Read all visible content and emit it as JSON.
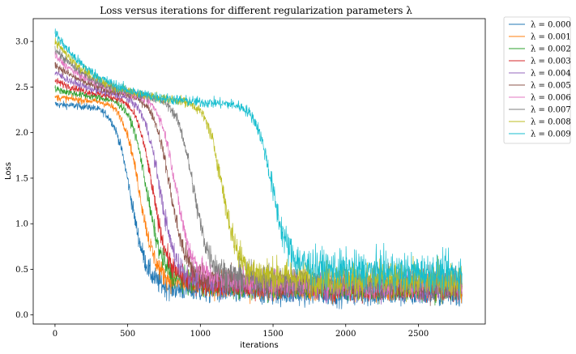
{
  "chart_data": {
    "type": "line",
    "title": "Loss versus iterations for different regularization parameters λ",
    "xlabel": "iterations",
    "ylabel": "Loss",
    "xlim": [
      -150,
      2960
    ],
    "ylim": [
      -0.1,
      3.25
    ],
    "xticks": [
      0,
      500,
      1000,
      1500,
      2000,
      2500
    ],
    "yticks": [
      0.0,
      0.5,
      1.0,
      1.5,
      2.0,
      2.5,
      3.0
    ],
    "grid": false,
    "legend_position": "outside-right",
    "iterations": 2800,
    "series": [
      {
        "name": "λ = 0.000",
        "color": "#1f77b4",
        "start": 2.31,
        "plateau": 2.27,
        "drop_center": 520,
        "final": 0.22,
        "noise": 0.06
      },
      {
        "name": "λ = 0.001",
        "color": "#ff7f0e",
        "start": 2.39,
        "plateau": 2.32,
        "drop_center": 580,
        "final": 0.27,
        "noise": 0.06
      },
      {
        "name": "λ = 0.002",
        "color": "#2ca02c",
        "start": 2.48,
        "plateau": 2.33,
        "drop_center": 630,
        "final": 0.28,
        "noise": 0.06
      },
      {
        "name": "λ = 0.003",
        "color": "#d62728",
        "start": 2.57,
        "plateau": 2.33,
        "drop_center": 670,
        "final": 0.29,
        "noise": 0.06
      },
      {
        "name": "λ = 0.004",
        "color": "#9467bd",
        "start": 2.66,
        "plateau": 2.33,
        "drop_center": 720,
        "final": 0.3,
        "noise": 0.07
      },
      {
        "name": "λ = 0.005",
        "color": "#8c564b",
        "start": 2.75,
        "plateau": 2.33,
        "drop_center": 790,
        "final": 0.32,
        "noise": 0.07
      },
      {
        "name": "λ = 0.006",
        "color": "#e377c2",
        "start": 2.84,
        "plateau": 2.33,
        "drop_center": 830,
        "final": 0.33,
        "noise": 0.07
      },
      {
        "name": "λ = 0.007",
        "color": "#7f7f7f",
        "start": 2.92,
        "plateau": 2.32,
        "drop_center": 950,
        "final": 0.35,
        "noise": 0.08
      },
      {
        "name": "λ = 0.008",
        "color": "#bcbd22",
        "start": 3.01,
        "plateau": 2.31,
        "drop_center": 1150,
        "final": 0.37,
        "noise": 0.09
      },
      {
        "name": "λ = 0.009",
        "color": "#17becf",
        "start": 3.1,
        "plateau": 2.3,
        "drop_center": 1490,
        "final": 0.45,
        "noise": 0.1
      }
    ]
  }
}
